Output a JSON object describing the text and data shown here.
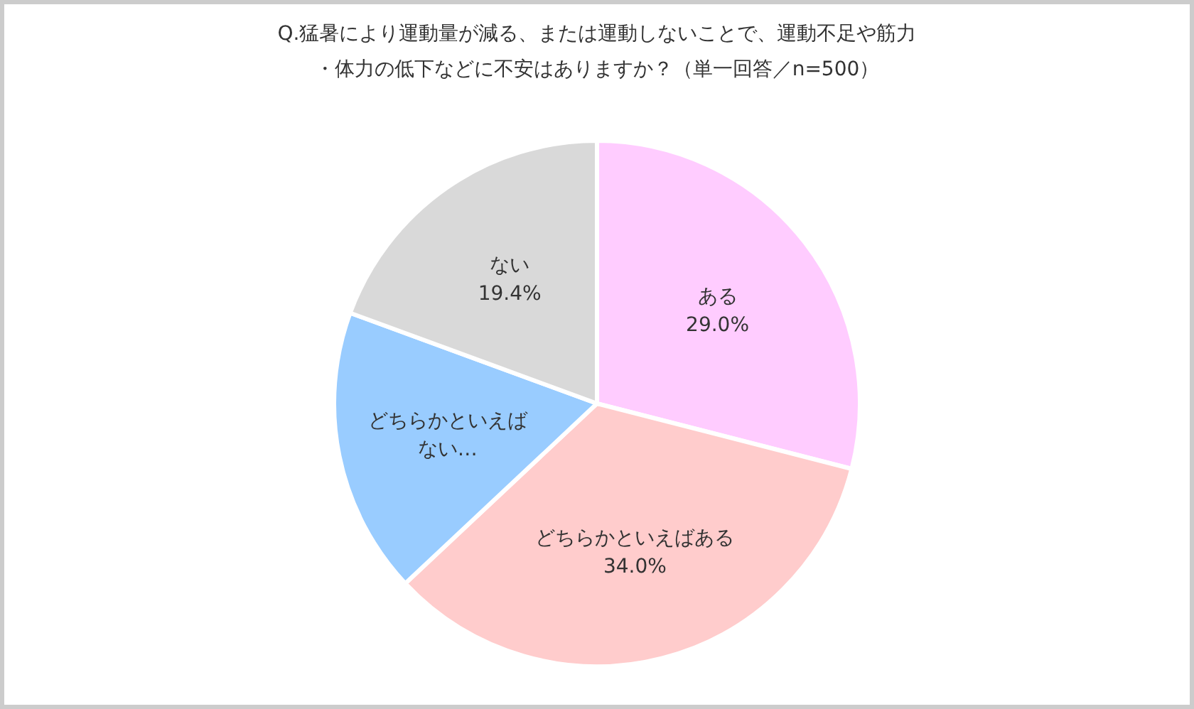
{
  "chart_data": {
    "type": "pie",
    "title": "Q.猛暑により運動量が減る、または運動しないことで、運動不足や筋力・体力の低下などに不安はありますか？（単一回答／n=500）",
    "categories": [
      "ある",
      "どちらかといえばある",
      "どちらかといえばない…",
      "ない"
    ],
    "values": [
      29.0,
      34.0,
      17.6,
      19.4
    ],
    "value_labels": [
      "29.0%",
      "34.0%",
      null,
      "19.4%"
    ],
    "colors": [
      "#ffccff",
      "#ffcccc",
      "#99ccff",
      "#d9d9d9"
    ]
  }
}
